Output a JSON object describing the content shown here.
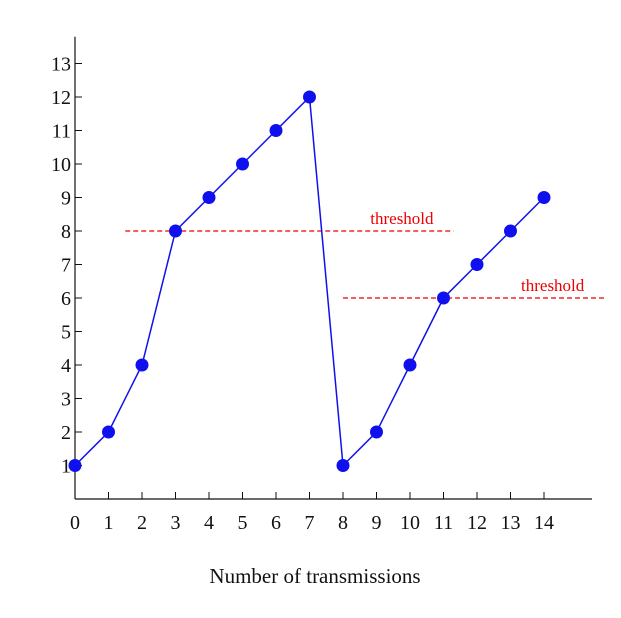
{
  "chart_data": {
    "type": "line",
    "title": "",
    "xlabel": "Number of transmissions",
    "ylabel": "",
    "xlim": [
      0,
      15.5
    ],
    "ylim": [
      0,
      13.8
    ],
    "x_ticks": [
      "0",
      "1",
      "2",
      "3",
      "4",
      "5",
      "6",
      "7",
      "8",
      "9",
      "10",
      "11",
      "12",
      "13",
      "14"
    ],
    "y_ticks": [
      "1",
      "2",
      "3",
      "4",
      "5",
      "6",
      "7",
      "8",
      "9",
      "10",
      "11",
      "12",
      "13"
    ],
    "grid": false,
    "legend": "none",
    "series": [
      {
        "x": [
          0,
          1,
          2,
          3,
          4,
          5,
          6,
          7,
          8,
          9,
          10,
          11,
          12,
          13,
          14
        ],
        "values": [
          1,
          2,
          4,
          8,
          9,
          10,
          11,
          12,
          1,
          2,
          4,
          6,
          7,
          8,
          9
        ],
        "color": "#1010ee"
      }
    ],
    "annotations": [
      {
        "text": "threshold",
        "y": 8,
        "x_start": 1.5,
        "x_end": 11.3,
        "color": "#ee0000"
      },
      {
        "text": "threshold",
        "y": 6,
        "x_start": 8,
        "x_end": 15.8,
        "color": "#ee0000"
      }
    ]
  }
}
